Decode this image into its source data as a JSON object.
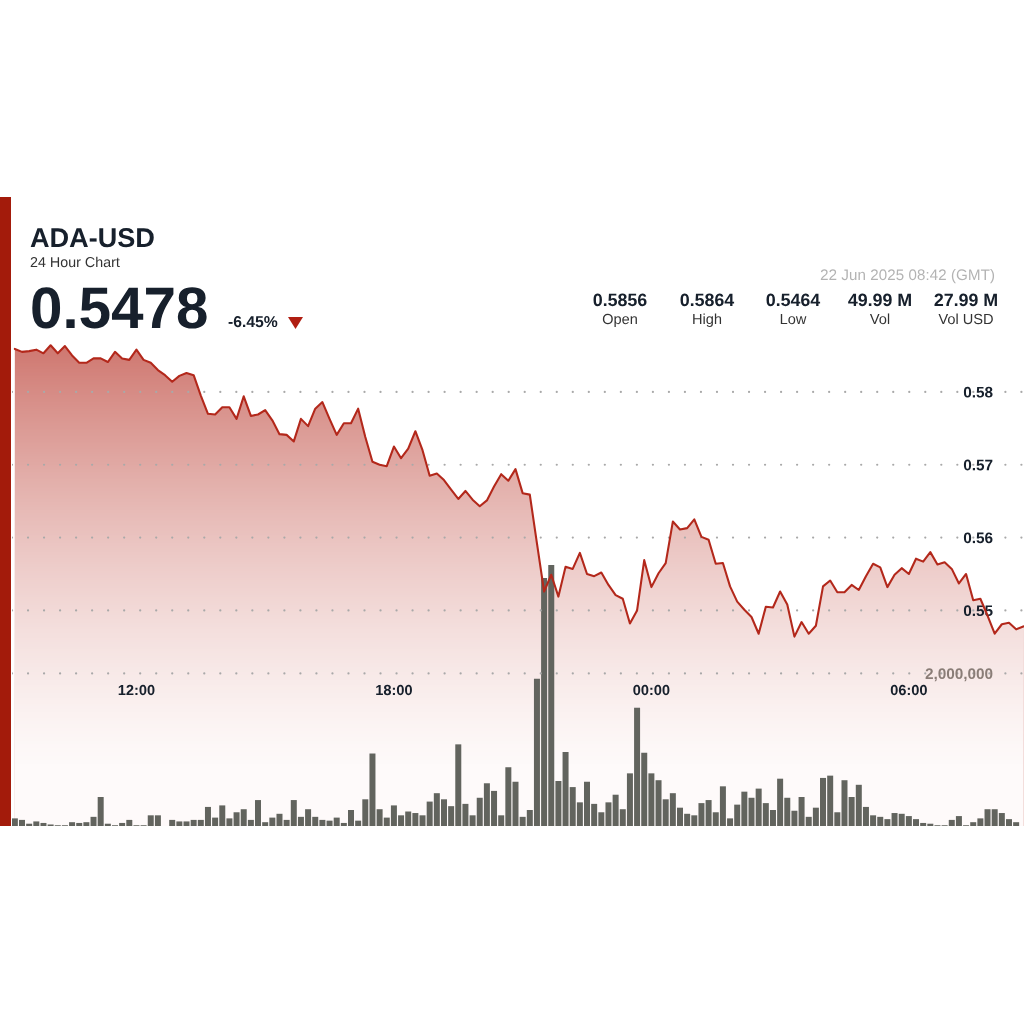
{
  "chart_data": {
    "type": "area",
    "title": "ADA-USD",
    "subtitle": "24 Hour Chart",
    "annotations": [
      "0.5478",
      "-6.45%",
      "22 Jun 2025 08:42 (GMT)",
      "0.5856",
      "Open",
      "0.5864",
      "High",
      "0.5464",
      "Low",
      "49.99 M",
      "Vol",
      "27.99 M",
      "Vol USD"
    ],
    "x": [
      "2025-06-21T09:10",
      "2025-06-21T09:20",
      "2025-06-21T09:30",
      "2025-06-21T09:40",
      "2025-06-21T09:50",
      "2025-06-21T10:00",
      "2025-06-21T10:10",
      "2025-06-21T10:20",
      "2025-06-21T10:30",
      "2025-06-21T10:40",
      "2025-06-21T10:50",
      "2025-06-21T11:00",
      "2025-06-21T11:10",
      "2025-06-21T11:20",
      "2025-06-21T11:30",
      "2025-06-21T11:40",
      "2025-06-21T11:50",
      "2025-06-21T12:00",
      "2025-06-21T12:10",
      "2025-06-21T12:20",
      "2025-06-21T12:30",
      "2025-06-21T12:40",
      "2025-06-21T12:50",
      "2025-06-21T13:00",
      "2025-06-21T13:10",
      "2025-06-21T13:20",
      "2025-06-21T13:30",
      "2025-06-21T13:40",
      "2025-06-21T13:50",
      "2025-06-21T14:00",
      "2025-06-21T14:10",
      "2025-06-21T14:20",
      "2025-06-21T14:30",
      "2025-06-21T14:40",
      "2025-06-21T14:50",
      "2025-06-21T15:00",
      "2025-06-21T15:10",
      "2025-06-21T15:20",
      "2025-06-21T15:30",
      "2025-06-21T15:40",
      "2025-06-21T15:50",
      "2025-06-21T16:00",
      "2025-06-21T16:10",
      "2025-06-21T16:20",
      "2025-06-21T16:30",
      "2025-06-21T16:40",
      "2025-06-21T16:50",
      "2025-06-21T17:00",
      "2025-06-21T17:10",
      "2025-06-21T17:20",
      "2025-06-21T17:30",
      "2025-06-21T17:40",
      "2025-06-21T17:50",
      "2025-06-21T18:00",
      "2025-06-21T18:10",
      "2025-06-21T18:20",
      "2025-06-21T18:30",
      "2025-06-21T18:40",
      "2025-06-21T18:50",
      "2025-06-21T19:00",
      "2025-06-21T19:10",
      "2025-06-21T19:20",
      "2025-06-21T19:30",
      "2025-06-21T19:40",
      "2025-06-21T19:50",
      "2025-06-21T20:00",
      "2025-06-21T20:10",
      "2025-06-21T20:20",
      "2025-06-21T20:30",
      "2025-06-21T20:40",
      "2025-06-21T20:50",
      "2025-06-21T21:00",
      "2025-06-21T21:10",
      "2025-06-21T21:20",
      "2025-06-21T21:30",
      "2025-06-21T21:40",
      "2025-06-21T21:50",
      "2025-06-21T22:00",
      "2025-06-21T22:10",
      "2025-06-21T22:20",
      "2025-06-21T22:30",
      "2025-06-21T22:40",
      "2025-06-21T22:50",
      "2025-06-21T23:00",
      "2025-06-21T23:10",
      "2025-06-21T23:20",
      "2025-06-21T23:30",
      "2025-06-21T23:40",
      "2025-06-21T23:50",
      "2025-06-22T00:00",
      "2025-06-22T00:10",
      "2025-06-22T00:20",
      "2025-06-22T00:30",
      "2025-06-22T00:40",
      "2025-06-22T00:50",
      "2025-06-22T01:00",
      "2025-06-22T01:10",
      "2025-06-22T01:20",
      "2025-06-22T01:30",
      "2025-06-22T01:40",
      "2025-06-22T01:50",
      "2025-06-22T02:00",
      "2025-06-22T02:10",
      "2025-06-22T02:20",
      "2025-06-22T02:30",
      "2025-06-22T02:40",
      "2025-06-22T02:50",
      "2025-06-22T03:00",
      "2025-06-22T03:10",
      "2025-06-22T03:20",
      "2025-06-22T03:30",
      "2025-06-22T03:40",
      "2025-06-22T03:50",
      "2025-06-22T04:00",
      "2025-06-22T04:10",
      "2025-06-22T04:20",
      "2025-06-22T04:30",
      "2025-06-22T04:40",
      "2025-06-22T04:50",
      "2025-06-22T05:00",
      "2025-06-22T05:10",
      "2025-06-22T05:20",
      "2025-06-22T05:30",
      "2025-06-22T05:40",
      "2025-06-22T05:50",
      "2025-06-22T06:00",
      "2025-06-22T06:10",
      "2025-06-22T06:20",
      "2025-06-22T06:30",
      "2025-06-22T06:40",
      "2025-06-22T06:50",
      "2025-06-22T07:00",
      "2025-06-22T07:10",
      "2025-06-22T07:20",
      "2025-06-22T07:30",
      "2025-06-22T07:40",
      "2025-06-22T07:50",
      "2025-06-22T08:00",
      "2025-06-22T08:10",
      "2025-06-22T08:20",
      "2025-06-22T08:30",
      "2025-06-22T08:40"
    ],
    "series": [
      {
        "color": "#b3281b",
        "values": [
          0.5859,
          0.5855,
          0.5856,
          0.5858,
          0.5853,
          0.5864,
          0.5853,
          0.5863,
          0.585,
          0.584,
          0.584,
          0.5846,
          0.5846,
          0.5841,
          0.5855,
          0.5846,
          0.5844,
          0.5858,
          0.5844,
          0.584,
          0.583,
          0.5823,
          0.5814,
          0.5822,
          0.5826,
          0.5823,
          0.5795,
          0.577,
          0.5769,
          0.5779,
          0.5779,
          0.5763,
          0.5794,
          0.5767,
          0.5769,
          0.5775,
          0.5761,
          0.5742,
          0.5741,
          0.5732,
          0.5763,
          0.5753,
          0.5777,
          0.5786,
          0.5763,
          0.5741,
          0.5757,
          0.5757,
          0.5777,
          0.5738,
          0.5704,
          0.57,
          0.5698,
          0.5725,
          0.5709,
          0.5722,
          0.5746,
          0.572,
          0.5685,
          0.5688,
          0.5679,
          0.5666,
          0.5653,
          0.5664,
          0.5652,
          0.5643,
          0.5651,
          0.567,
          0.5687,
          0.5678,
          0.5694,
          0.5661,
          0.5659,
          0.5592,
          0.5526,
          0.5549,
          0.5519,
          0.556,
          0.5557,
          0.5579,
          0.555,
          0.5547,
          0.5552,
          0.5535,
          0.5521,
          0.5516,
          0.5482,
          0.55,
          0.5569,
          0.5532,
          0.5551,
          0.5565,
          0.5622,
          0.5611,
          0.5613,
          0.5625,
          0.5601,
          0.5597,
          0.5564,
          0.5565,
          0.5533,
          0.5512,
          0.5501,
          0.5491,
          0.5468,
          0.5505,
          0.5504,
          0.5526,
          0.5508,
          0.5464,
          0.5484,
          0.5468,
          0.5479,
          0.5533,
          0.5541,
          0.5525,
          0.5525,
          0.5535,
          0.5528,
          0.5547,
          0.5564,
          0.5559,
          0.5532,
          0.5549,
          0.5558,
          0.555,
          0.5571,
          0.5567,
          0.558,
          0.5563,
          0.5566,
          0.5557,
          0.5537,
          0.555,
          0.5514,
          0.5516,
          0.5493,
          0.5468,
          0.5481,
          0.5483,
          0.5474,
          0.5478
        ]
      },
      {
        "type": "bar",
        "axis": "y2",
        "color": "#62645e",
        "values": [
          100000,
          80000,
          30000,
          60000,
          40000,
          20000,
          10000,
          10000,
          50000,
          40000,
          50000,
          120000,
          380000,
          30000,
          10000,
          40000,
          80000,
          10000,
          10000,
          140000,
          140000,
          0,
          80000,
          60000,
          60000,
          80000,
          80000,
          250000,
          110000,
          270000,
          100000,
          180000,
          220000,
          80000,
          340000,
          50000,
          110000,
          160000,
          80000,
          340000,
          120000,
          220000,
          120000,
          80000,
          70000,
          110000,
          40000,
          210000,
          70000,
          350000,
          950000,
          220000,
          110000,
          270000,
          140000,
          190000,
          170000,
          140000,
          320000,
          430000,
          350000,
          260000,
          1070000,
          290000,
          140000,
          370000,
          560000,
          460000,
          140000,
          770000,
          580000,
          120000,
          210000,
          1930000,
          3250000,
          3420000,
          590000,
          970000,
          510000,
          310000,
          580000,
          290000,
          180000,
          310000,
          410000,
          220000,
          690000,
          1550000,
          960000,
          690000,
          600000,
          350000,
          430000,
          240000,
          160000,
          140000,
          300000,
          340000,
          180000,
          520000,
          100000,
          280000,
          450000,
          370000,
          490000,
          300000,
          210000,
          620000,
          370000,
          200000,
          380000,
          120000,
          240000,
          630000,
          660000,
          180000,
          600000,
          380000,
          540000,
          250000,
          140000,
          120000,
          90000,
          170000,
          160000,
          130000,
          90000,
          40000,
          30000,
          10000,
          10000,
          80000,
          130000,
          10000,
          50000,
          100000,
          220000,
          220000,
          170000,
          90000,
          50000,
          null
        ]
      }
    ],
    "xlim": [
      "2025-06-21T09:06",
      "2025-06-22T08:41"
    ],
    "xticks": [
      {
        "value": "2025-06-21T12:00",
        "label": "12:00"
      },
      {
        "value": "2025-06-21T18:00",
        "label": "18:00"
      },
      {
        "value": "2025-06-22T00:00",
        "label": "00:00"
      },
      {
        "value": "2025-06-22T06:00",
        "label": "06:00"
      }
    ],
    "ylim": [
      0.5204,
      0.5885
    ],
    "yticks": [
      0.55,
      0.56,
      0.57,
      0.58
    ],
    "y2lim": [
      0,
      6500000
    ],
    "y2ticks": [
      {
        "value": 2000000,
        "label": "2,000,000"
      }
    ],
    "grid": "y"
  }
}
